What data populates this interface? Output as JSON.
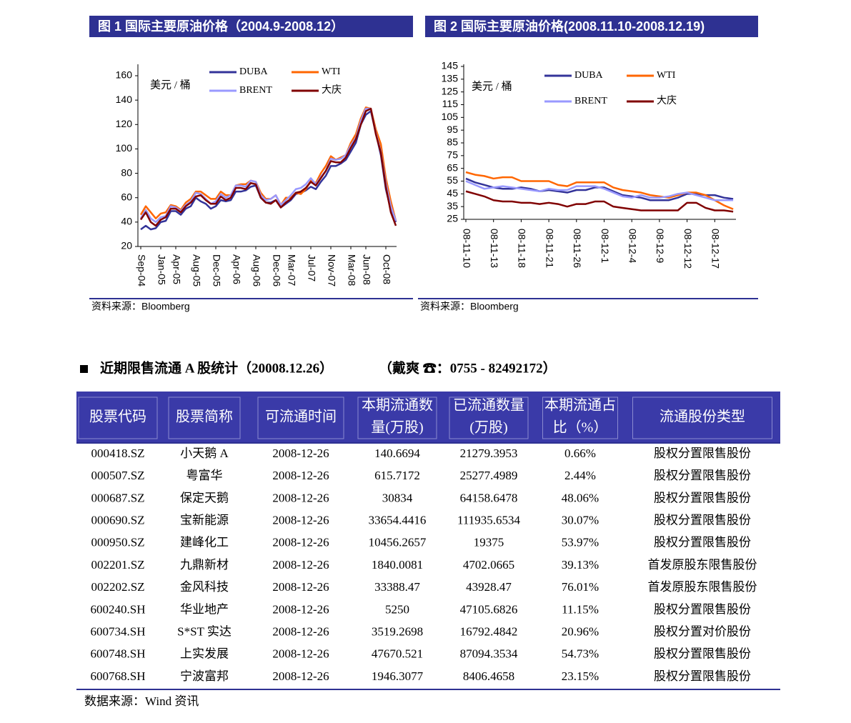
{
  "chart_data": [
    {
      "type": "line",
      "title": "图 1  国际主要原油价格（2004.9-2008.12）",
      "unit_label": "美元 / 桶",
      "source": "资料来源：Bloomberg",
      "categories": [
        "Sep-04",
        null,
        null,
        null,
        "Jan-05",
        null,
        null,
        "Apr-05",
        null,
        null,
        null,
        "Aug-05",
        null,
        null,
        null,
        "Dec-05",
        null,
        null,
        null,
        "Apr-06",
        null,
        null,
        null,
        "Aug-06",
        null,
        null,
        null,
        "Dec-06",
        null,
        null,
        "Mar-07",
        null,
        null,
        null,
        "Jul-07",
        null,
        null,
        null,
        "Nov-07",
        null,
        null,
        null,
        "Mar-08",
        null,
        null,
        "Jun-08",
        null,
        null,
        null,
        "Oct-08",
        null,
        null
      ],
      "series": [
        {
          "name": "DUBA",
          "color": "#333399",
          "values": [
            34,
            37,
            34,
            35,
            40,
            41,
            49,
            49,
            46,
            51,
            53,
            60,
            57,
            55,
            51,
            53,
            58,
            57,
            58,
            65,
            65,
            66,
            69,
            70,
            60,
            56,
            56,
            58,
            52,
            55,
            58,
            63,
            64,
            66,
            69,
            67,
            73,
            78,
            86,
            86,
            88,
            91,
            98,
            105,
            120,
            128,
            131,
            113,
            95,
            67,
            50,
            40
          ]
        },
        {
          "name": "WTI",
          "color": "#ff6600",
          "values": [
            46,
            53,
            48,
            43,
            47,
            48,
            54,
            53,
            50,
            56,
            59,
            65,
            65,
            62,
            59,
            59,
            65,
            62,
            62,
            70,
            71,
            71,
            74,
            73,
            64,
            59,
            59,
            62,
            54,
            60,
            60,
            64,
            63,
            67,
            74,
            72,
            80,
            86,
            94,
            91,
            93,
            95,
            105,
            112,
            125,
            134,
            133,
            116,
            104,
            76,
            57,
            41
          ]
        },
        {
          "name": "BRENT",
          "color": "#9999ff",
          "values": [
            43,
            50,
            43,
            40,
            44,
            45,
            53,
            52,
            49,
            54,
            57,
            64,
            63,
            59,
            55,
            57,
            63,
            60,
            62,
            70,
            70,
            69,
            74,
            73,
            62,
            58,
            59,
            62,
            54,
            58,
            62,
            67,
            68,
            71,
            76,
            71,
            77,
            82,
            92,
            91,
            92,
            95,
            103,
            109,
            123,
            133,
            133,
            113,
            98,
            72,
            53,
            41
          ]
        },
        {
          "name": "大庆",
          "color": "#800000",
          "values": [
            42,
            48,
            40,
            37,
            42,
            44,
            51,
            51,
            48,
            53,
            56,
            61,
            62,
            58,
            55,
            55,
            61,
            58,
            60,
            68,
            68,
            67,
            72,
            71,
            60,
            56,
            55,
            58,
            52,
            56,
            59,
            64,
            65,
            68,
            73,
            70,
            76,
            82,
            90,
            89,
            89,
            93,
            101,
            108,
            120,
            131,
            133,
            112,
            97,
            69,
            48,
            37
          ]
        }
      ],
      "ylim": [
        20,
        160
      ],
      "yticks": [
        20,
        40,
        60,
        80,
        100,
        120,
        140,
        160
      ]
    },
    {
      "type": "line",
      "title": "图 2  国际主要原油价格(2008.11.10-2008.12.19)",
      "unit_label": "美元 / 桶",
      "source": "资料来源：Bloomberg",
      "categories": [
        "08-11-10",
        null,
        null,
        "08-11-13",
        null,
        null,
        "08-11-18",
        null,
        null,
        "08-11-21",
        null,
        null,
        "08-11-26",
        null,
        null,
        "08-12-1",
        null,
        null,
        "08-12-4",
        null,
        null,
        "08-12-9",
        null,
        null,
        "08-12-12",
        null,
        null,
        "08-12-17",
        null,
        null
      ],
      "series": [
        {
          "name": "DUBA",
          "color": "#333399",
          "values": [
            57,
            54,
            52,
            50,
            49,
            49,
            50,
            49,
            47,
            48,
            47,
            46,
            48,
            48,
            50,
            50,
            47,
            44,
            43,
            42,
            40,
            40,
            40,
            42,
            45,
            45,
            44,
            44,
            42,
            41
          ]
        },
        {
          "name": "WTI",
          "color": "#ff6600",
          "values": [
            62,
            60,
            59,
            57,
            58,
            58,
            55,
            55,
            55,
            55,
            52,
            51,
            54,
            54,
            54,
            54,
            50,
            48,
            47,
            46,
            44,
            43,
            42,
            44,
            46,
            46,
            44,
            40,
            36,
            33
          ]
        },
        {
          "name": "BRENT",
          "color": "#9999ff",
          "values": [
            55,
            52,
            49,
            50,
            51,
            50,
            49,
            48,
            47,
            49,
            48,
            48,
            51,
            51,
            51,
            49,
            46,
            43,
            42,
            44,
            42,
            42,
            43,
            45,
            46,
            44,
            42,
            40,
            40,
            40
          ]
        },
        {
          "name": "大庆",
          "color": "#800000",
          "values": [
            47,
            45,
            43,
            40,
            39,
            39,
            38,
            38,
            37,
            38,
            37,
            35,
            37,
            37,
            39,
            39,
            35,
            34,
            33,
            32,
            32,
            32,
            32,
            32,
            38,
            38,
            34,
            32,
            32,
            31
          ]
        }
      ],
      "ylim": [
        25,
        145
      ],
      "yticks": [
        25,
        35,
        45,
        55,
        65,
        75,
        85,
        95,
        105,
        115,
        125,
        135,
        145
      ]
    }
  ],
  "table_section": {
    "heading": "近期限售流通 A 股统计（20008.12.26）",
    "contact": "（戴爽   ☎：0755 - 82492172）"
  },
  "table": {
    "header": [
      [
        "股票代码"
      ],
      [
        "股票简称"
      ],
      [
        "可流通时间"
      ],
      [
        "本期流通数",
        "量(万股)"
      ],
      [
        "已流通数量",
        "(万股)"
      ],
      [
        "本期流通占",
        "比（%）"
      ],
      [
        "流通股份类型"
      ]
    ],
    "rows": [
      [
        "000418.SZ",
        "小天鹅 A",
        "2008-12-26",
        "140.6694",
        "21279.3953",
        "0.66%",
        "股权分置限售股份"
      ],
      [
        "000507.SZ",
        "粤富华",
        "2008-12-26",
        "615.7172",
        "25277.4989",
        "2.44%",
        "股权分置限售股份"
      ],
      [
        "000687.SZ",
        "保定天鹅",
        "2008-12-26",
        "30834",
        "64158.6478",
        "48.06%",
        "股权分置限售股份"
      ],
      [
        "000690.SZ",
        "宝新能源",
        "2008-12-26",
        "33654.4416",
        "111935.6534",
        "30.07%",
        "股权分置限售股份"
      ],
      [
        "000950.SZ",
        "建峰化工",
        "2008-12-26",
        "10456.2657",
        "19375",
        "53.97%",
        "股权分置限售股份"
      ],
      [
        "002201.SZ",
        "九鼎新材",
        "2008-12-26",
        "1840.0081",
        "4702.0665",
        "39.13%",
        "首发原股东限售股份"
      ],
      [
        "002202.SZ",
        "金风科技",
        "2008-12-26",
        "33388.47",
        "43928.47",
        "76.01%",
        "首发原股东限售股份"
      ],
      [
        "600240.SH",
        "华业地产",
        "2008-12-26",
        "5250",
        "47105.6826",
        "11.15%",
        "股权分置限售股份"
      ],
      [
        "600734.SH",
        "S*ST 实达",
        "2008-12-26",
        "3519.2698",
        "16792.4842",
        "20.96%",
        "股权分置对价股份"
      ],
      [
        "600748.SH",
        "上实发展",
        "2008-12-26",
        "47670.521",
        "87094.3534",
        "54.73%",
        "股权分置限售股份"
      ],
      [
        "600768.SH",
        "宁波富邦",
        "2008-12-26",
        "1946.3077",
        "8406.4658",
        "23.15%",
        "股权分置限售股份"
      ]
    ],
    "source": "数据来源：Wind 资讯"
  }
}
